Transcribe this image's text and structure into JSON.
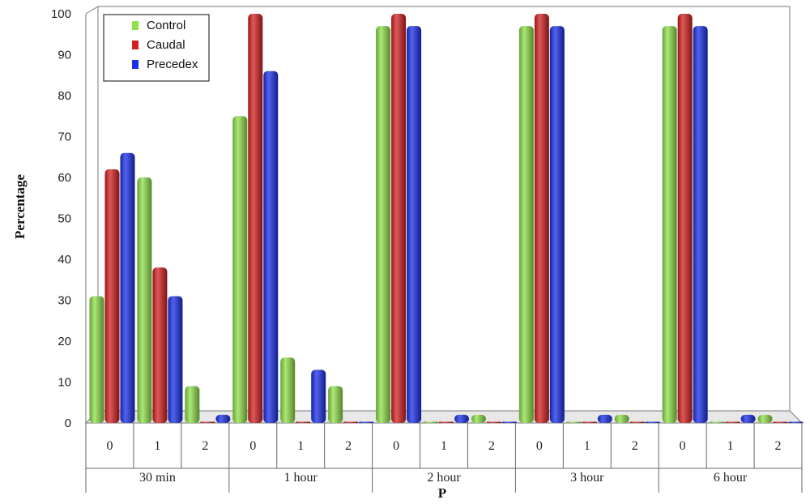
{
  "chart_data": {
    "type": "bar",
    "ylabel": "Percentage",
    "xlabel": "P",
    "ylim": [
      0,
      100
    ],
    "yticks": [
      0,
      10,
      20,
      30,
      40,
      50,
      60,
      70,
      80,
      90,
      100
    ],
    "grid": false,
    "legend_position": "top-left",
    "groups": [
      {
        "label": "30 min",
        "categories": [
          "0",
          "1",
          "2"
        ]
      },
      {
        "label": "1 hour",
        "categories": [
          "0",
          "1",
          "2"
        ]
      },
      {
        "label": "2 hour",
        "categories": [
          "0",
          "1",
          "2"
        ]
      },
      {
        "label": "3 hour",
        "categories": [
          "0",
          "1",
          "2"
        ]
      },
      {
        "label": "6 hour",
        "categories": [
          "0",
          "1",
          "2"
        ]
      }
    ],
    "series": [
      {
        "name": "Control",
        "color": "#8fe04a",
        "values": [
          31,
          60,
          9,
          75,
          16,
          9,
          97,
          0,
          2,
          97,
          0,
          2,
          97,
          0,
          2
        ]
      },
      {
        "name": "Caudal",
        "color": "#d42020",
        "values": [
          62,
          38,
          0,
          100,
          0,
          0,
          100,
          0,
          0,
          100,
          0,
          0,
          100,
          0,
          0
        ]
      },
      {
        "name": "Precedex",
        "color": "#1a2fe8",
        "values": [
          66,
          31,
          2,
          86,
          13,
          0,
          97,
          2,
          0,
          97,
          2,
          0,
          97,
          2,
          0
        ]
      }
    ]
  }
}
